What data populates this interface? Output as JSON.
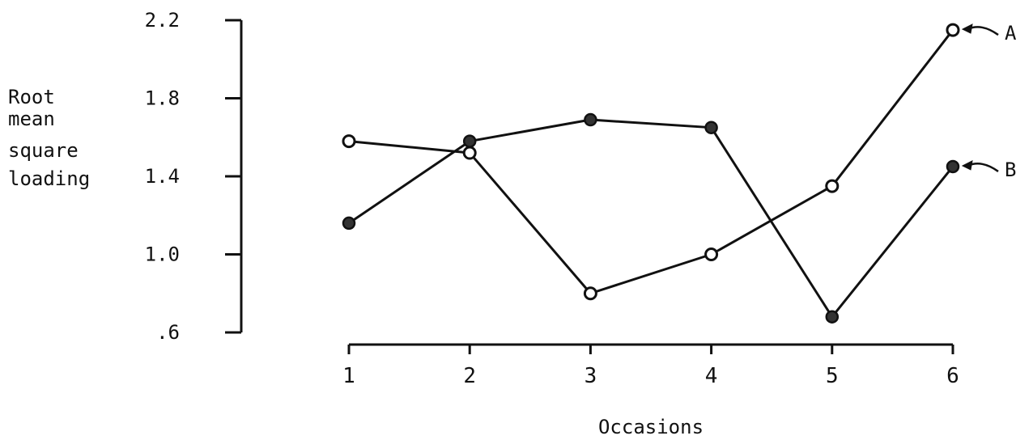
{
  "chart_data": {
    "type": "line",
    "ylabel_lines": [
      "Root",
      "mean",
      "square",
      "loading"
    ],
    "xlabel": "Occasions",
    "x": [
      1,
      2,
      3,
      4,
      5,
      6
    ],
    "x_tick_labels": [
      "1",
      "2",
      "3",
      "4",
      "5",
      "6"
    ],
    "y_ticks": [
      0.6,
      1.0,
      1.4,
      1.8,
      2.2
    ],
    "y_tick_labels": [
      ".6",
      "1.0",
      "1.4",
      "1.8",
      "2.2"
    ],
    "ylim": [
      0.6,
      2.2
    ],
    "grid": false,
    "legend": "none",
    "series": [
      {
        "name": "A",
        "marker": "open-circle",
        "values": [
          1.58,
          1.52,
          0.8,
          1.0,
          1.35,
          2.15
        ]
      },
      {
        "name": "B",
        "marker": "filled-circle",
        "values": [
          1.16,
          1.58,
          1.69,
          1.65,
          0.68,
          1.45
        ]
      }
    ],
    "colors": {
      "line": "#111111",
      "background": "#ffffff"
    }
  }
}
